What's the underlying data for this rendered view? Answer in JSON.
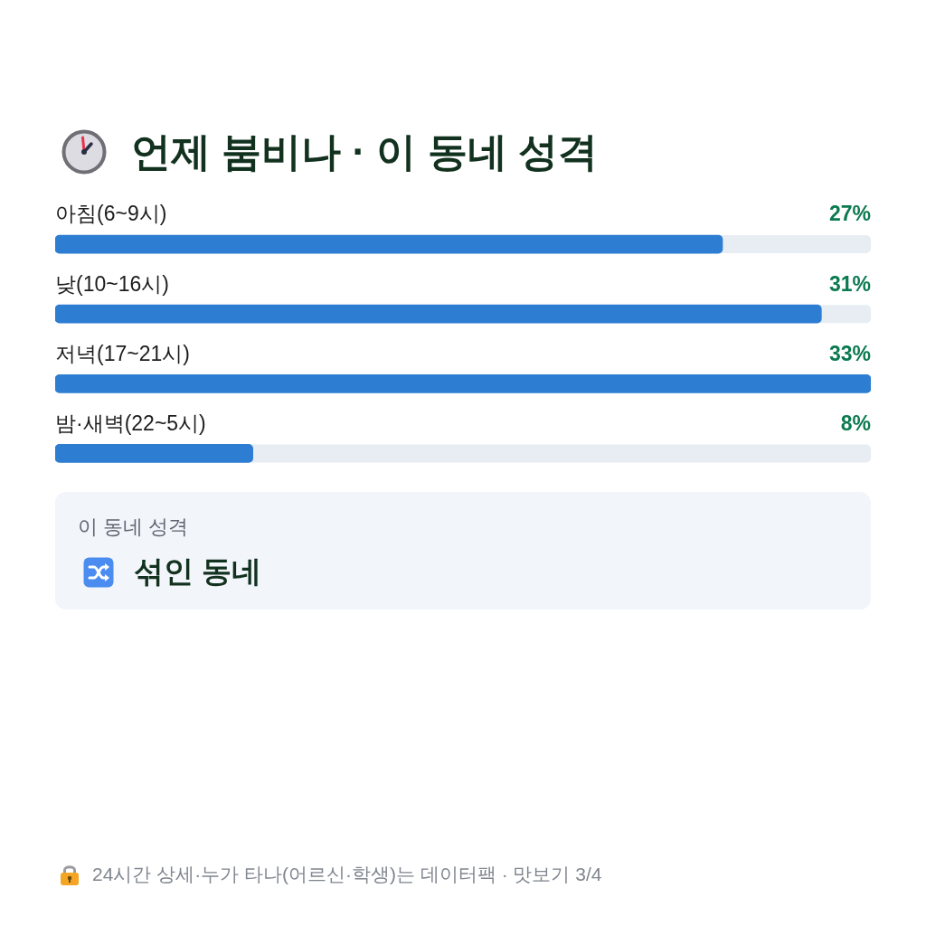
{
  "chart_data": {
    "type": "bar",
    "orientation": "horizontal",
    "title": "언제 붐비나 · 이 동네 성격",
    "categories": [
      "아침(6~9시)",
      "낮(10~16시)",
      "저녁(17~21시)",
      "밤·새벽(22~5시)"
    ],
    "values": [
      27,
      31,
      33,
      8
    ],
    "color": "#2d7dd2",
    "value_labels": [
      "27%",
      "31%",
      "33%",
      "8%"
    ],
    "xlim": [
      0,
      33
    ],
    "tick_labels": "y",
    "annotations": [
      "이 동네 성격",
      "섞인 동네",
      "24시간 상세·누가 타나(어르신·학생)는 데이터팩 · 맛보기 3/4"
    ]
  }
}
